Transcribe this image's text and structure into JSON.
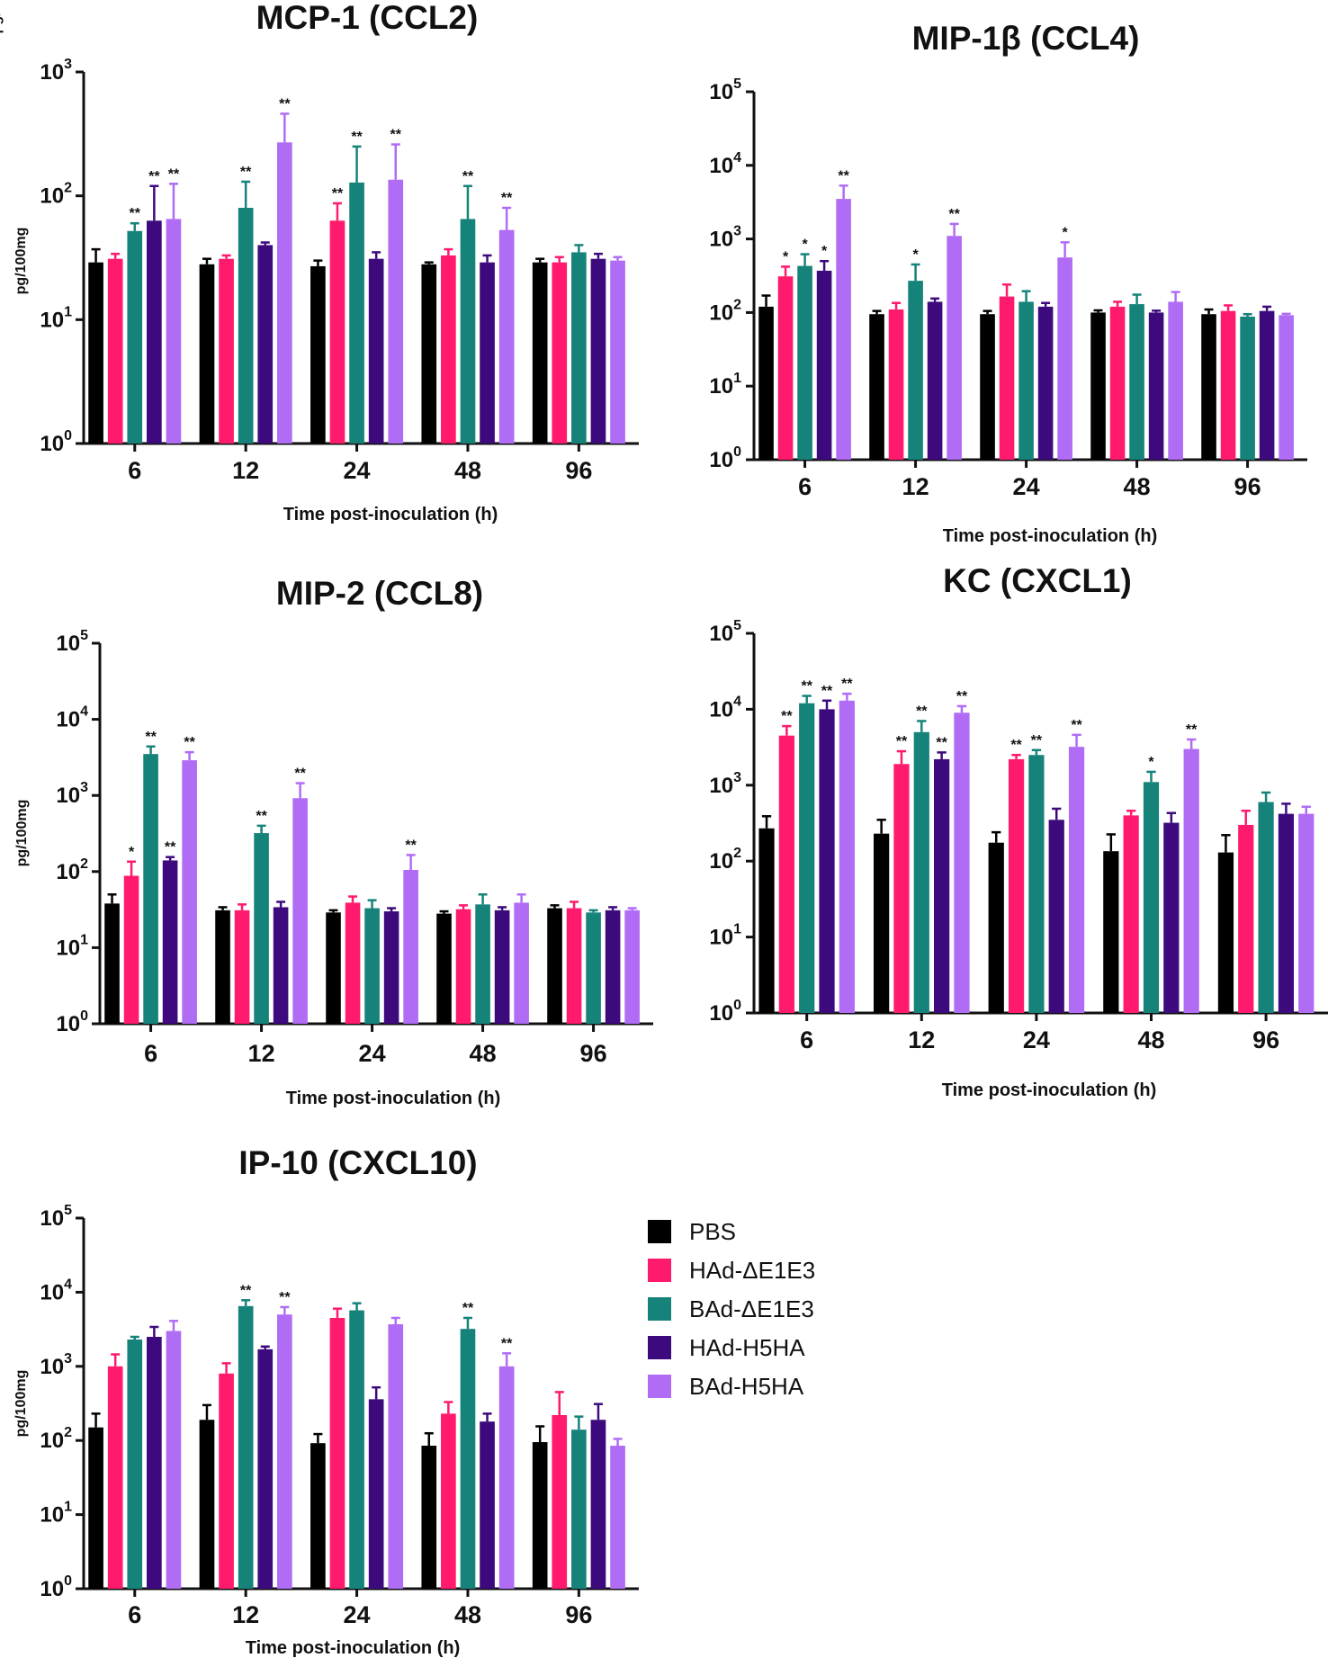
{
  "chart_data": [
    {
      "type": "bar",
      "title": "MCP-1 (CCL2)",
      "xlabel": "Time post-inoculation (h)",
      "ylabel": "pg/100mg",
      "yscale": "log",
      "ylim": [
        1,
        1000
      ],
      "yticks": [
        {
          "base": "10",
          "exp": "0"
        },
        {
          "base": "10",
          "exp": "1"
        },
        {
          "base": "10",
          "exp": "2"
        },
        {
          "base": "10",
          "exp": "3"
        }
      ],
      "categories": [
        "6",
        "12",
        "24",
        "48",
        "96"
      ],
      "series": [
        {
          "name": "PBS",
          "values": [
            29,
            28,
            27,
            28,
            29
          ],
          "errors": [
            37,
            31,
            30,
            29,
            31
          ],
          "stars": [
            "",
            "",
            "",
            "",
            ""
          ]
        },
        {
          "name": "HAd-ΔE1E3",
          "values": [
            31,
            31,
            63,
            33,
            29
          ],
          "errors": [
            34,
            33,
            87,
            37,
            32
          ],
          "stars": [
            "",
            "",
            "**",
            "",
            ""
          ]
        },
        {
          "name": "BAd-ΔE1E3",
          "values": [
            52,
            80,
            128,
            65,
            35
          ],
          "errors": [
            60,
            130,
            250,
            120,
            40
          ],
          "stars": [
            "**",
            "**",
            "**",
            "**",
            ""
          ]
        },
        {
          "name": "HAd-H5HA",
          "values": [
            63,
            40,
            31,
            29,
            31
          ],
          "errors": [
            120,
            42,
            35,
            33,
            34
          ],
          "stars": [
            "**",
            "",
            "",
            "",
            ""
          ]
        },
        {
          "name": "BAd-H5HA",
          "values": [
            65,
            270,
            135,
            53,
            30
          ],
          "errors": [
            125,
            460,
            260,
            80,
            32
          ],
          "stars": [
            "**",
            "**",
            "**",
            "**",
            ""
          ]
        }
      ]
    },
    {
      "type": "bar",
      "title": "MIP-1β (CCL4)",
      "xlabel": "Time post-inoculation (h)",
      "ylabel": "pg/100mg",
      "yscale": "log",
      "ylim": [
        1,
        100000
      ],
      "yticks": [
        {
          "base": "10",
          "exp": "0"
        },
        {
          "base": "10",
          "exp": "1"
        },
        {
          "base": "10",
          "exp": "2"
        },
        {
          "base": "10",
          "exp": "3"
        },
        {
          "base": "10",
          "exp": "4"
        },
        {
          "base": "10",
          "exp": "5"
        }
      ],
      "categories": [
        "6",
        "12",
        "24",
        "48",
        "96"
      ],
      "series": [
        {
          "name": "PBS",
          "values": [
            120,
            95,
            95,
            100,
            95
          ],
          "errors": [
            170,
            105,
            105,
            107,
            110
          ],
          "stars": [
            "",
            "",
            "",
            "",
            ""
          ]
        },
        {
          "name": "HAd-ΔE1E3",
          "values": [
            310,
            110,
            165,
            120,
            105
          ],
          "errors": [
            420,
            135,
            240,
            140,
            125
          ],
          "stars": [
            "*",
            "",
            "",
            "",
            ""
          ]
        },
        {
          "name": "BAd-ΔE1E3",
          "values": [
            430,
            270,
            140,
            130,
            88
          ],
          "errors": [
            620,
            450,
            195,
            175,
            95
          ],
          "stars": [
            "*",
            "*",
            "",
            "",
            ""
          ]
        },
        {
          "name": "HAd-H5HA",
          "values": [
            370,
            140,
            120,
            100,
            105
          ],
          "errors": [
            500,
            155,
            135,
            106,
            120
          ],
          "stars": [
            "*",
            "",
            "",
            "",
            ""
          ]
        },
        {
          "name": "BAd-H5HA",
          "values": [
            3500,
            1100,
            560,
            140,
            92
          ],
          "errors": [
            5300,
            1600,
            900,
            190,
            96
          ],
          "stars": [
            "**",
            "**",
            "*",
            "",
            ""
          ]
        }
      ]
    },
    {
      "type": "bar",
      "title": "MIP-2 (CCL8)",
      "xlabel": "Time post-inoculation (h)",
      "ylabel": "pg/100mg",
      "yscale": "log",
      "ylim": [
        1,
        100000
      ],
      "yticks": [
        {
          "base": "10",
          "exp": "0"
        },
        {
          "base": "10",
          "exp": "1"
        },
        {
          "base": "10",
          "exp": "2"
        },
        {
          "base": "10",
          "exp": "3"
        },
        {
          "base": "10",
          "exp": "4"
        },
        {
          "base": "10",
          "exp": "5"
        }
      ],
      "categories": [
        "6",
        "12",
        "24",
        "48",
        "96"
      ],
      "series": [
        {
          "name": "PBS",
          "values": [
            38,
            31,
            29,
            28,
            33
          ],
          "errors": [
            50,
            34,
            31,
            30,
            36
          ],
          "stars": [
            "",
            "",
            "",
            "",
            ""
          ]
        },
        {
          "name": "HAd-ΔE1E3",
          "values": [
            88,
            31,
            39,
            32,
            33
          ],
          "errors": [
            135,
            37,
            47,
            36,
            40
          ],
          "stars": [
            "*",
            "",
            "",
            "",
            ""
          ]
        },
        {
          "name": "BAd-ΔE1E3",
          "values": [
            3500,
            320,
            33,
            37,
            29
          ],
          "errors": [
            4400,
            400,
            42,
            50,
            31
          ],
          "stars": [
            "**",
            "**",
            "",
            "",
            ""
          ]
        },
        {
          "name": "HAd-H5HA",
          "values": [
            140,
            34,
            30,
            31,
            31
          ],
          "errors": [
            155,
            40,
            33,
            34,
            34
          ],
          "stars": [
            "**",
            "",
            "",
            "",
            ""
          ]
        },
        {
          "name": "BAd-H5HA",
          "values": [
            2900,
            920,
            105,
            39,
            31
          ],
          "errors": [
            3700,
            1450,
            165,
            50,
            33
          ],
          "stars": [
            "**",
            "**",
            "**",
            "",
            ""
          ]
        }
      ]
    },
    {
      "type": "bar",
      "title": "KC (CXCL1)",
      "xlabel": "Time post-inoculation (h)",
      "ylabel": "",
      "yscale": "log",
      "ylim": [
        1,
        100000
      ],
      "yticks": [
        {
          "base": "10",
          "exp": "0"
        },
        {
          "base": "10",
          "exp": "1"
        },
        {
          "base": "10",
          "exp": "2"
        },
        {
          "base": "10",
          "exp": "3"
        },
        {
          "base": "10",
          "exp": "4"
        },
        {
          "base": "10",
          "exp": "5"
        }
      ],
      "categories": [
        "6",
        "12",
        "24",
        "48",
        "96"
      ],
      "series": [
        {
          "name": "PBS",
          "values": [
            270,
            230,
            175,
            135,
            130
          ],
          "errors": [
            390,
            350,
            240,
            225,
            220
          ],
          "stars": [
            "",
            "",
            "",
            "",
            ""
          ]
        },
        {
          "name": "HAd-ΔE1E3",
          "values": [
            4500,
            1900,
            2200,
            400,
            300
          ],
          "errors": [
            6000,
            2800,
            2500,
            460,
            460
          ],
          "stars": [
            "**",
            "**",
            "**",
            "",
            ""
          ]
        },
        {
          "name": "BAd-ΔE1E3",
          "values": [
            12000,
            5000,
            2500,
            1100,
            600
          ],
          "errors": [
            15000,
            7000,
            2900,
            1500,
            800
          ],
          "stars": [
            "**",
            "**",
            "**",
            "*",
            ""
          ]
        },
        {
          "name": "HAd-H5HA",
          "values": [
            10000,
            2200,
            350,
            320,
            420
          ],
          "errors": [
            13000,
            2700,
            490,
            430,
            570
          ],
          "stars": [
            "**",
            "**",
            "",
            "",
            ""
          ]
        },
        {
          "name": "BAd-H5HA",
          "values": [
            13000,
            9000,
            3200,
            3000,
            420
          ],
          "errors": [
            16000,
            11000,
            4600,
            4000,
            520
          ],
          "stars": [
            "**",
            "**",
            "**",
            "**",
            ""
          ]
        }
      ]
    },
    {
      "type": "bar",
      "title": "IP-10 (CXCL10)",
      "xlabel": "Time post-inoculation (h)",
      "ylabel": "pg/100mg",
      "yscale": "log",
      "ylim": [
        1,
        100000
      ],
      "yticks": [
        {
          "base": "10",
          "exp": "0"
        },
        {
          "base": "10",
          "exp": "1"
        },
        {
          "base": "10",
          "exp": "2"
        },
        {
          "base": "10",
          "exp": "3"
        },
        {
          "base": "10",
          "exp": "4"
        },
        {
          "base": "10",
          "exp": "5"
        }
      ],
      "categories": [
        "6",
        "12",
        "24",
        "48",
        "96"
      ],
      "series": [
        {
          "name": "PBS",
          "values": [
            150,
            190,
            92,
            85,
            95
          ],
          "errors": [
            230,
            300,
            122,
            125,
            155
          ],
          "stars": [
            "",
            "",
            "",
            "",
            ""
          ]
        },
        {
          "name": "HAd-ΔE1E3",
          "values": [
            1000,
            800,
            4500,
            230,
            220
          ],
          "errors": [
            1450,
            1100,
            6000,
            330,
            450
          ],
          "stars": [
            "",
            "",
            "",
            "",
            ""
          ]
        },
        {
          "name": "BAd-ΔE1E3",
          "values": [
            2300,
            6500,
            5700,
            3200,
            140
          ],
          "errors": [
            2500,
            7800,
            7100,
            4500,
            210
          ],
          "stars": [
            "",
            "**",
            "",
            "**",
            ""
          ]
        },
        {
          "name": "HAd-H5HA",
          "values": [
            2500,
            1700,
            360,
            180,
            190
          ],
          "errors": [
            3400,
            1850,
            520,
            230,
            310
          ],
          "stars": [
            "",
            "",
            "",
            "",
            ""
          ]
        },
        {
          "name": "BAd-H5HA",
          "values": [
            3000,
            5000,
            3700,
            1000,
            85
          ],
          "errors": [
            4100,
            6300,
            4500,
            1500,
            105
          ],
          "stars": [
            "",
            "**",
            "",
            "**",
            ""
          ]
        }
      ]
    }
  ],
  "legend": {
    "items": [
      {
        "label": "PBS",
        "color": "#000000"
      },
      {
        "label": "HAd-ΔE1E3",
        "color": "#ff1a6e"
      },
      {
        "label": "BAd-ΔE1E3",
        "color": "#16837a"
      },
      {
        "label": "HAd-H5HA",
        "color": "#3d0a7d"
      },
      {
        "label": "BAd-H5HA",
        "color": "#b06cf5"
      }
    ]
  }
}
